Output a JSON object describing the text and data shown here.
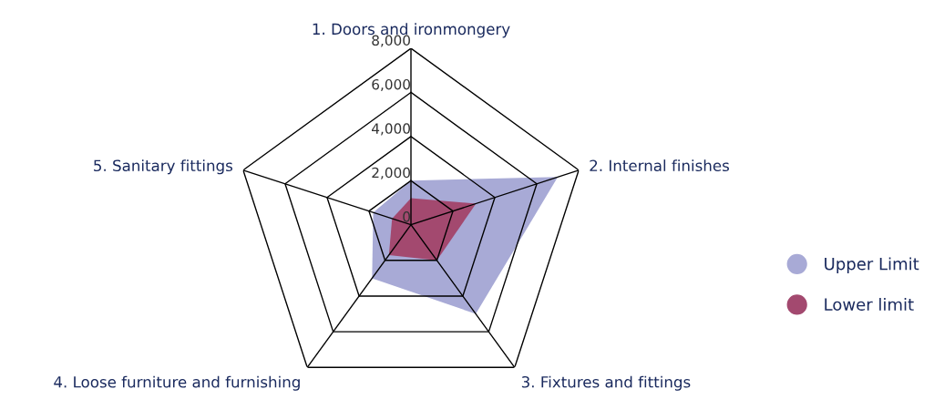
{
  "chart_data": {
    "type": "radar",
    "categories": [
      "1. Doors and ironmongery",
      "2. Internal finishes",
      "3. Fixtures and fittings",
      "4. Loose furniture and furnishing",
      "5. Sanitary fittings"
    ],
    "series": [
      {
        "name": "Upper Limit",
        "color": "#a8aad6",
        "values": [
          2000,
          7000,
          5000,
          3000,
          1800
        ]
      },
      {
        "name": "Lower limit",
        "color": "#a3496f",
        "values": [
          1200,
          3100,
          2000,
          1700,
          900
        ]
      }
    ],
    "ylim": [
      0,
      8000
    ],
    "yticks": [
      {
        "value": 0,
        "label": "0"
      },
      {
        "value": 2000,
        "label": "2,000"
      },
      {
        "value": 4000,
        "label": "4,000"
      },
      {
        "value": 6000,
        "label": "6,000"
      },
      {
        "value": 8000,
        "label": "8,000"
      }
    ],
    "grid": true,
    "legend": "right"
  }
}
